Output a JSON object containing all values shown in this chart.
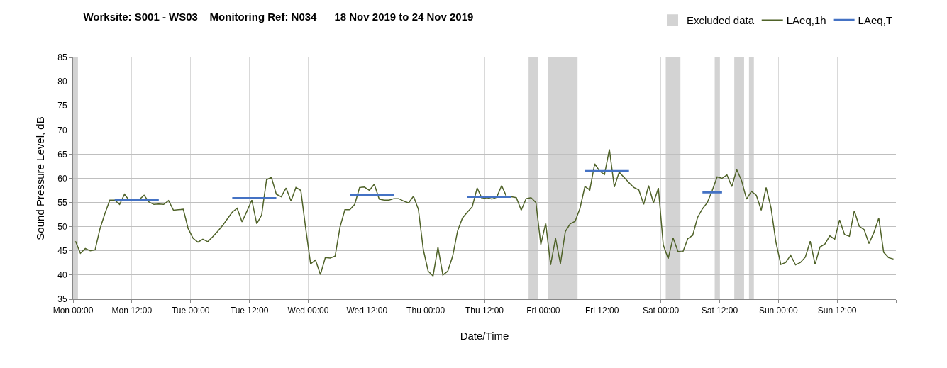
{
  "chart_data": {
    "type": "line",
    "title": "Worksite: S001 - WS03    Monitoring Ref: N034      18 Nov 2019 to 24 Nov 2019",
    "xlabel": "Date/Time",
    "ylabel": "Sound Pressure Level, dB",
    "xlim": [
      "2019-11-18T00:00",
      "2019-11-25T00:00"
    ],
    "ylim": [
      35,
      85
    ],
    "xticks": [
      {
        "value": "2019-11-18T00:00",
        "label": "Mon 00:00"
      },
      {
        "value": "2019-11-18T12:00",
        "label": "Mon 12:00"
      },
      {
        "value": "2019-11-19T00:00",
        "label": "Tue 00:00"
      },
      {
        "value": "2019-11-19T12:00",
        "label": "Tue 12:00"
      },
      {
        "value": "2019-11-20T00:00",
        "label": "Wed 00:00"
      },
      {
        "value": "2019-11-20T12:00",
        "label": "Wed 12:00"
      },
      {
        "value": "2019-11-21T00:00",
        "label": "Thu 00:00"
      },
      {
        "value": "2019-11-21T12:00",
        "label": "Thu 12:00"
      },
      {
        "value": "2019-11-22T00:00",
        "label": "Fri 00:00"
      },
      {
        "value": "2019-11-22T12:00",
        "label": "Fri 12:00"
      },
      {
        "value": "2019-11-23T00:00",
        "label": "Sat 00:00"
      },
      {
        "value": "2019-11-23T12:00",
        "label": "Sat 12:00"
      },
      {
        "value": "2019-11-24T00:00",
        "label": "Sun 00:00"
      },
      {
        "value": "2019-11-24T12:00",
        "label": "Sun 12:00"
      },
      {
        "value": "2019-11-25T00:00",
        "label": null
      }
    ],
    "yticks": [
      35,
      40,
      45,
      50,
      55,
      60,
      65,
      70,
      75,
      80,
      85
    ],
    "grid": true,
    "legend": "top right",
    "marker": "none",
    "bands": [
      {
        "axis": "x",
        "from": "2019-11-18T00:00",
        "to": "2019-11-18T01:00",
        "label": "Excluded data",
        "color": "#d3d3d3"
      },
      {
        "axis": "x",
        "from": "2019-11-21T21:00",
        "to": "2019-11-21T23:00",
        "color": "#d3d3d3"
      },
      {
        "axis": "x",
        "from": "2019-11-22T01:00",
        "to": "2019-11-22T07:00",
        "color": "#d3d3d3"
      },
      {
        "axis": "x",
        "from": "2019-11-23T01:00",
        "to": "2019-11-23T04:00",
        "color": "#d3d3d3"
      },
      {
        "axis": "x",
        "from": "2019-11-23T11:00",
        "to": "2019-11-23T12:00",
        "color": "#d3d3d3"
      },
      {
        "axis": "x",
        "from": "2019-11-23T15:00",
        "to": "2019-11-23T17:00",
        "color": "#d3d3d3"
      },
      {
        "axis": "x",
        "from": "2019-11-23T18:00",
        "to": "2019-11-23T19:00",
        "color": "#d3d3d3"
      }
    ],
    "series": [
      {
        "name": "LAeq,1h",
        "color": "#4f6228",
        "line_style": "solid",
        "x": [
          "2019-11-18T00:30",
          "2019-11-18T01:30",
          "2019-11-18T02:30",
          "2019-11-18T03:30",
          "2019-11-18T04:30",
          "2019-11-18T05:30",
          "2019-11-18T06:30",
          "2019-11-18T07:30",
          "2019-11-18T08:30",
          "2019-11-18T09:30",
          "2019-11-18T10:30",
          "2019-11-18T11:30",
          "2019-11-18T12:30",
          "2019-11-18T13:30",
          "2019-11-18T14:30",
          "2019-11-18T15:30",
          "2019-11-18T16:30",
          "2019-11-18T17:30",
          "2019-11-18T18:30",
          "2019-11-18T19:30",
          "2019-11-18T20:30",
          "2019-11-18T21:30",
          "2019-11-18T22:30",
          "2019-11-18T23:30",
          "2019-11-19T00:30",
          "2019-11-19T01:30",
          "2019-11-19T02:30",
          "2019-11-19T03:30",
          "2019-11-19T04:30",
          "2019-11-19T05:30",
          "2019-11-19T06:30",
          "2019-11-19T07:30",
          "2019-11-19T08:30",
          "2019-11-19T09:30",
          "2019-11-19T10:30",
          "2019-11-19T11:30",
          "2019-11-19T12:30",
          "2019-11-19T13:30",
          "2019-11-19T14:30",
          "2019-11-19T15:30",
          "2019-11-19T16:30",
          "2019-11-19T17:30",
          "2019-11-19T18:30",
          "2019-11-19T19:30",
          "2019-11-19T20:30",
          "2019-11-19T21:30",
          "2019-11-19T22:30",
          "2019-11-19T23:30",
          "2019-11-20T00:30",
          "2019-11-20T01:30",
          "2019-11-20T02:30",
          "2019-11-20T03:30",
          "2019-11-20T04:30",
          "2019-11-20T05:30",
          "2019-11-20T06:30",
          "2019-11-20T07:30",
          "2019-11-20T08:30",
          "2019-11-20T09:30",
          "2019-11-20T10:30",
          "2019-11-20T11:30",
          "2019-11-20T12:30",
          "2019-11-20T13:30",
          "2019-11-20T14:30",
          "2019-11-20T15:30",
          "2019-11-20T16:30",
          "2019-11-20T17:30",
          "2019-11-20T18:30",
          "2019-11-20T19:30",
          "2019-11-20T20:30",
          "2019-11-20T21:30",
          "2019-11-20T22:30",
          "2019-11-20T23:30",
          "2019-11-21T00:30",
          "2019-11-21T01:30",
          "2019-11-21T02:30",
          "2019-11-21T03:30",
          "2019-11-21T04:30",
          "2019-11-21T05:30",
          "2019-11-21T06:30",
          "2019-11-21T07:30",
          "2019-11-21T08:30",
          "2019-11-21T09:30",
          "2019-11-21T10:30",
          "2019-11-21T11:30",
          "2019-11-21T12:30",
          "2019-11-21T13:30",
          "2019-11-21T14:30",
          "2019-11-21T15:30",
          "2019-11-21T16:30",
          "2019-11-21T17:30",
          "2019-11-21T18:30",
          "2019-11-21T19:30",
          "2019-11-21T20:30",
          "2019-11-21T21:30",
          "2019-11-21T22:30",
          "2019-11-21T23:30",
          "2019-11-22T00:30",
          "2019-11-22T01:30",
          "2019-11-22T02:30",
          "2019-11-22T03:30",
          "2019-11-22T04:30",
          "2019-11-22T05:30",
          "2019-11-22T06:30",
          "2019-11-22T07:30",
          "2019-11-22T08:30",
          "2019-11-22T09:30",
          "2019-11-22T10:30",
          "2019-11-22T11:30",
          "2019-11-22T12:30",
          "2019-11-22T13:30",
          "2019-11-22T14:30",
          "2019-11-22T15:30",
          "2019-11-22T16:30",
          "2019-11-22T17:30",
          "2019-11-22T18:30",
          "2019-11-22T19:30",
          "2019-11-22T20:30",
          "2019-11-22T21:30",
          "2019-11-22T22:30",
          "2019-11-22T23:30",
          "2019-11-23T00:30",
          "2019-11-23T01:30",
          "2019-11-23T02:30",
          "2019-11-23T03:30",
          "2019-11-23T04:30",
          "2019-11-23T05:30",
          "2019-11-23T06:30",
          "2019-11-23T07:30",
          "2019-11-23T08:30",
          "2019-11-23T09:30",
          "2019-11-23T10:30",
          "2019-11-23T11:30",
          "2019-11-23T12:30",
          "2019-11-23T13:30",
          "2019-11-23T14:30",
          "2019-11-23T15:30",
          "2019-11-23T16:30",
          "2019-11-23T17:30",
          "2019-11-23T18:30",
          "2019-11-23T19:30",
          "2019-11-23T20:30",
          "2019-11-23T21:30",
          "2019-11-23T22:30",
          "2019-11-23T23:30",
          "2019-11-24T00:30",
          "2019-11-24T01:30",
          "2019-11-24T02:30",
          "2019-11-24T03:30",
          "2019-11-24T04:30",
          "2019-11-24T05:30",
          "2019-11-24T06:30",
          "2019-11-24T07:30",
          "2019-11-24T08:30",
          "2019-11-24T09:30",
          "2019-11-24T10:30",
          "2019-11-24T11:30",
          "2019-11-24T12:30",
          "2019-11-24T13:30",
          "2019-11-24T14:30",
          "2019-11-24T15:30",
          "2019-11-24T16:30",
          "2019-11-24T17:30",
          "2019-11-24T18:30",
          "2019-11-24T19:30",
          "2019-11-24T20:30",
          "2019-11-24T21:30",
          "2019-11-24T22:30",
          "2019-11-24T23:30"
        ],
        "values": [
          47.0,
          44.5,
          45.5,
          45.0,
          45.2,
          49.6,
          52.7,
          55.5,
          55.5,
          54.6,
          56.7,
          55.4,
          55.7,
          55.6,
          56.5,
          55.1,
          54.6,
          54.7,
          54.6,
          55.4,
          53.4,
          53.5,
          53.6,
          49.6,
          47.6,
          46.8,
          47.4,
          46.9,
          47.9,
          49.0,
          50.2,
          51.6,
          53.0,
          53.8,
          51.0,
          53.2,
          55.5,
          50.6,
          52.4,
          59.7,
          60.2,
          56.7,
          56.2,
          58.0,
          55.3,
          58.1,
          57.5,
          49.6,
          42.3,
          43.1,
          40.1,
          43.6,
          43.5,
          43.9,
          49.9,
          53.5,
          53.5,
          54.6,
          58.1,
          58.2,
          57.5,
          58.8,
          55.7,
          55.5,
          55.5,
          55.8,
          55.8,
          55.3,
          54.9,
          56.3,
          53.6,
          45.3,
          40.8,
          39.8,
          45.8,
          40.0,
          40.8,
          43.9,
          49.1,
          51.8,
          53.0,
          54.1,
          58.0,
          55.8,
          56.0,
          55.7,
          56.1,
          58.5,
          56.2,
          56.2,
          56.0,
          53.4,
          55.8,
          56.0,
          55.0,
          46.3,
          50.7,
          42.1,
          47.6,
          42.3,
          49.0,
          50.6,
          51.1,
          53.8,
          58.3,
          57.6,
          63.0,
          61.5,
          60.8,
          66.0,
          58.2,
          61.3,
          60.2,
          59.1,
          58.1,
          57.6,
          54.6,
          58.5,
          54.9,
          58.0,
          46.2,
          43.4,
          47.7,
          44.9,
          44.8,
          47.5,
          48.2,
          51.9,
          53.7,
          55.0,
          57.5,
          60.3,
          60.0,
          60.7,
          58.3,
          61.8,
          59.5,
          55.7,
          57.3,
          56.5,
          53.4,
          58.1,
          53.9,
          46.8,
          42.2,
          42.6,
          44.1,
          42.1,
          42.6,
          43.7,
          47.0,
          42.2,
          45.8,
          46.4,
          48.1,
          47.4,
          51.4,
          48.4,
          48.0,
          53.3,
          50.1,
          49.4,
          46.5,
          48.8,
          51.8,
          44.7,
          43.6,
          43.3
        ]
      },
      {
        "name": "LAeq,T",
        "color": "#4472c4",
        "line_style": "solid",
        "x": [
          "2019-11-18T08:30",
          "2019-11-18T17:30",
          "2019-11-19T01:00",
          "2019-11-19T08:30",
          "2019-11-19T17:30",
          "2019-11-20T02:00",
          "2019-11-20T08:30",
          "2019-11-20T17:30",
          "2019-11-21T01:00",
          "2019-11-21T08:30",
          "2019-11-21T17:30",
          "2019-11-22T01:00",
          "2019-11-22T08:30",
          "2019-11-22T17:30",
          "2019-11-23T00:00",
          "2019-11-23T08:30",
          "2019-11-23T12:30"
        ],
        "values": [
          55.5,
          55.5,
          null,
          55.9,
          55.9,
          null,
          56.6,
          56.6,
          null,
          56.2,
          56.2,
          null,
          61.5,
          61.5,
          null,
          57.1,
          57.1
        ]
      }
    ]
  }
}
